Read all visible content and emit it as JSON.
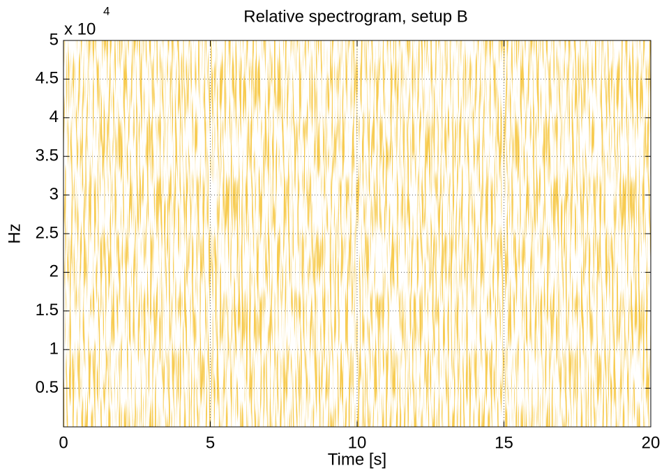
{
  "chart_data": {
    "type": "spectrogram",
    "title": "Relative spectrogram, setup B",
    "xlabel": "Time [s]",
    "ylabel": "Hz",
    "y_exponent_base": "x 10",
    "y_exponent": "4",
    "xlim": [
      0,
      20
    ],
    "xticks": [
      0,
      5,
      10,
      15,
      20
    ],
    "ylim": [
      0,
      50000
    ],
    "yticks": [
      {
        "value": 5000,
        "label": "0.5"
      },
      {
        "value": 10000,
        "label": "1"
      },
      {
        "value": 15000,
        "label": "1.5"
      },
      {
        "value": 20000,
        "label": "2"
      },
      {
        "value": 25000,
        "label": "2.5"
      },
      {
        "value": 30000,
        "label": "3"
      },
      {
        "value": 35000,
        "label": "3.5"
      },
      {
        "value": 40000,
        "label": "4"
      },
      {
        "value": 45000,
        "label": "4.5"
      },
      {
        "value": 50000,
        "label": "5"
      }
    ],
    "grid": true,
    "color": "#f0a020"
  }
}
